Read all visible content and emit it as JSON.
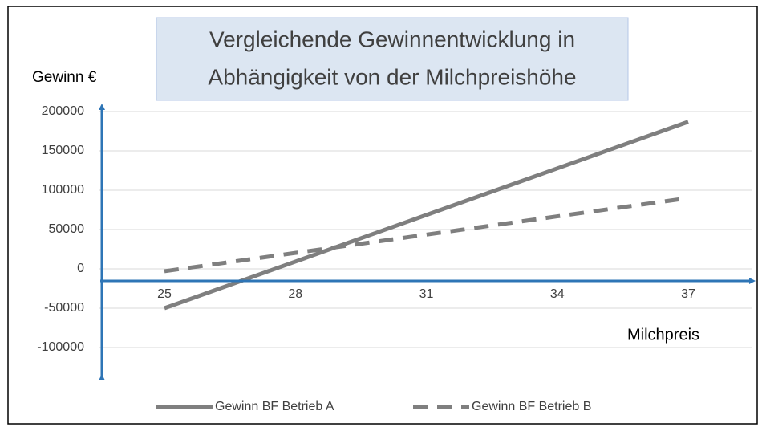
{
  "chart_data": {
    "type": "line",
    "title": [
      "Vergleichende Gewinnentwicklung in",
      "Abhängigkeit von der  Milchpreishöhe"
    ],
    "y_label": "Gewinn €",
    "x_label": "Milchpreis",
    "categories": [
      "25",
      "28",
      "31",
      "34",
      "37"
    ],
    "series": [
      {
        "name": "Gewinn BF Betrieb A",
        "color": "#7f7f7f",
        "dash": "solid",
        "values": [
          -50000,
          9250,
          68500,
          127750,
          187000
        ]
      },
      {
        "name": "Gewinn BF Betrieb B",
        "color": "#7f7f7f",
        "dash": "dashed",
        "values": [
          -3000,
          20250,
          43500,
          66750,
          90000
        ]
      }
    ],
    "ylim": [
      -100000,
      200000
    ],
    "yticks": [
      -100000,
      -50000,
      0,
      50000,
      100000,
      150000,
      200000
    ],
    "grid": true,
    "legend": "bottom"
  }
}
